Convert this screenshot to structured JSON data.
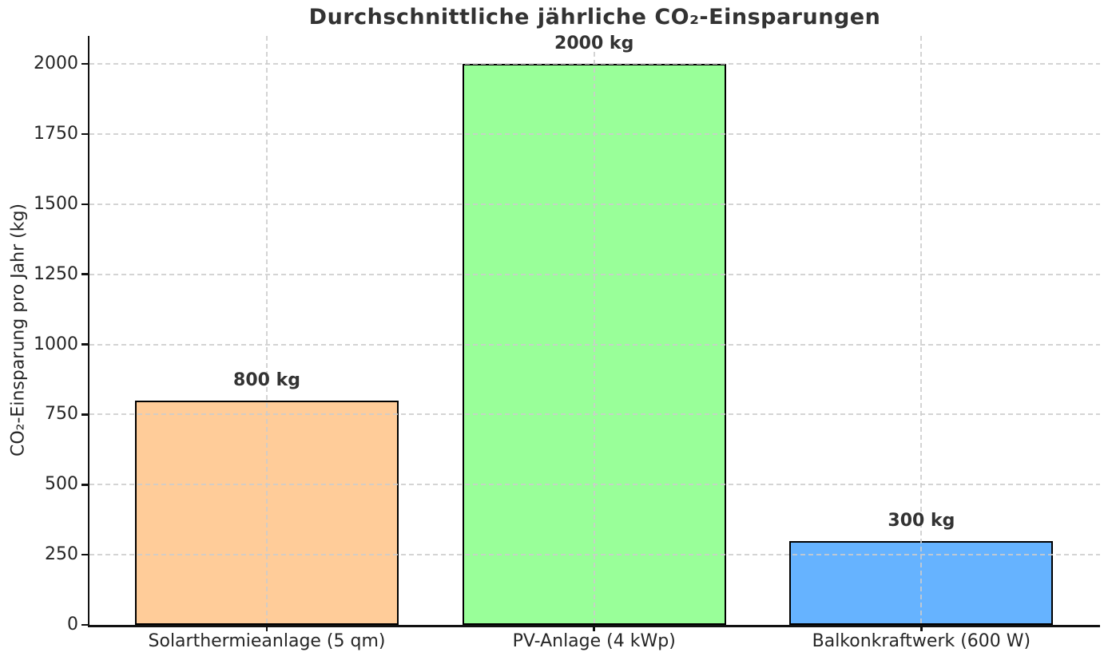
{
  "chart_data": {
    "type": "bar",
    "title": "Durchschnittliche jährliche CO₂-Einsparungen",
    "ylabel": "CO₂-Einsparung pro Jahr (kg)",
    "xlabel": "",
    "categories": [
      "Solarthermieanlage (5 qm)",
      "PV-Anlage (4 kWp)",
      "Balkonkraftwerk (600 W)"
    ],
    "values": [
      800,
      2000,
      300
    ],
    "bar_labels": [
      "800 kg",
      "2000 kg",
      "300 kg"
    ],
    "bar_colors": [
      "#ffcc99",
      "#99ff99",
      "#66b3ff"
    ],
    "bar_edge_color": "#000000",
    "yticks": [
      0,
      250,
      500,
      750,
      1000,
      1250,
      1500,
      1750,
      2000
    ],
    "ylim": [
      0,
      2100
    ],
    "legend": "none",
    "grid": "dashed-both-axes-above-bars",
    "grid_color": "#cccccc",
    "text_color": "#262626",
    "title_color": "#333333",
    "background_color": "#ffffff"
  }
}
